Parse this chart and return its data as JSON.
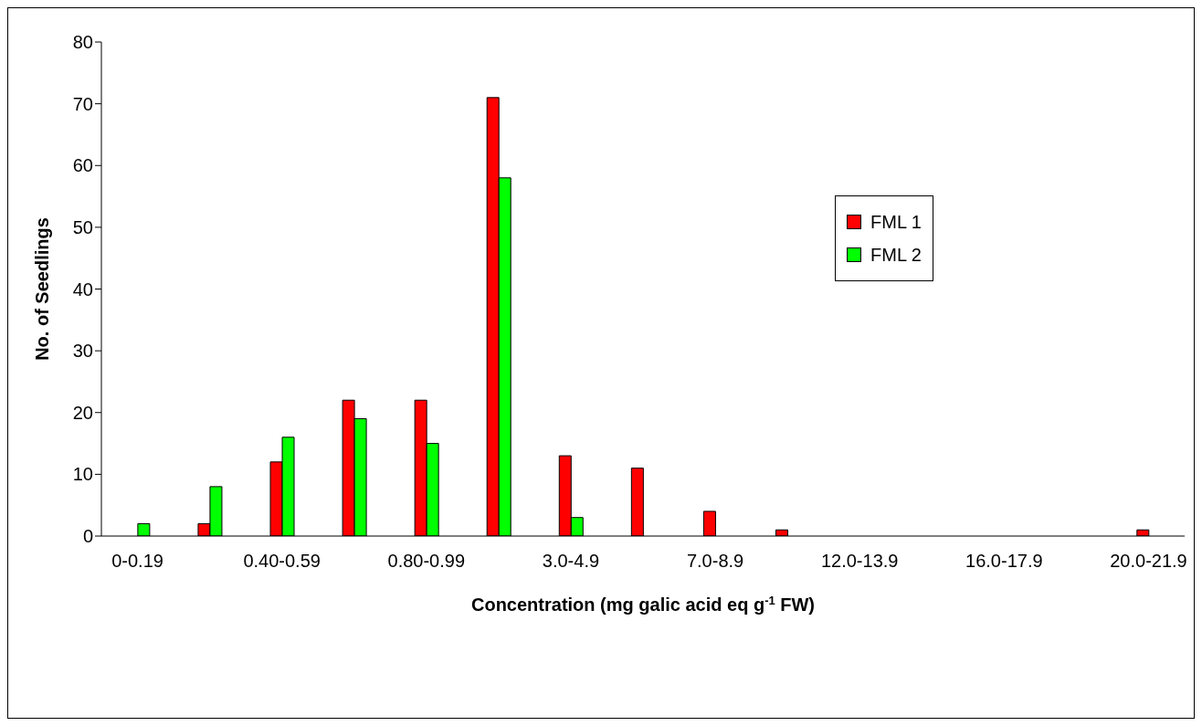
{
  "chart_data": {
    "type": "bar",
    "xlabel": "Concentration (mg galic acid eq g$^{-1}$ FW)",
    "ylabel": "No. of Seedlings",
    "categories": [
      "0-0.19",
      null,
      "0.40-0.59",
      null,
      "0.80-0.99",
      null,
      "3.0-4.9",
      null,
      "7.0-8.9",
      null,
      "12.0-13.9",
      null,
      "16.0-17.9",
      null,
      "20.0-21.9"
    ],
    "series": [
      {
        "name": "FML 1",
        "color": "#ff0000",
        "values": [
          0,
          2,
          12,
          22,
          22,
          71,
          13,
          11,
          4,
          1,
          0,
          0,
          0,
          0,
          1
        ]
      },
      {
        "name": "FML 2",
        "color": "#00ff00",
        "values": [
          2,
          8,
          16,
          19,
          15,
          58,
          3,
          0,
          0,
          0,
          0,
          0,
          0,
          0,
          0
        ]
      }
    ],
    "ylim": [
      0,
      80
    ],
    "yticks": [
      0,
      10,
      20,
      30,
      40,
      50,
      60,
      70,
      80
    ],
    "grid": false,
    "legend": "top right"
  }
}
